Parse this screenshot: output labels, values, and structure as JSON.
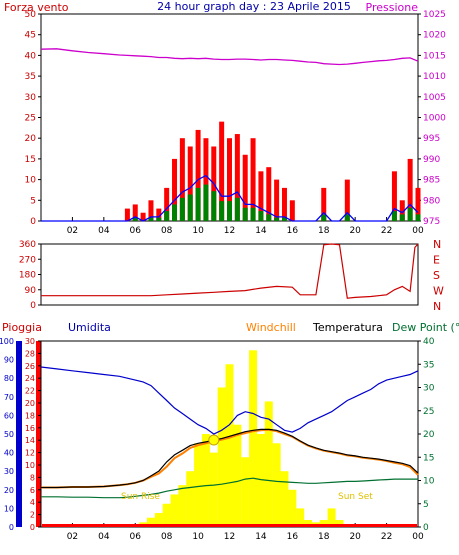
{
  "header": {
    "left_title": "Forza vento",
    "left_unit": "",
    "center_title": "24 hour graph day : 23 Aprile 2015",
    "right_title": "Pressione"
  },
  "panel3_headers": {
    "rain": "Pioggia",
    "humidity": "Umidita",
    "windchill": "Windchill",
    "temperature": "Temperatura",
    "dewpoint": "Dew Point (°C"
  },
  "annotations": {
    "sunrise": "Sun Rise",
    "sunset": "Sun Set"
  },
  "colors": {
    "wind_speed": "#ff0000",
    "wind_gust_avg": "#0000ff",
    "wind_fill": "#008000",
    "pressure": "#cc00cc",
    "direction": "#cc0000",
    "humidity": "#0000cc",
    "windchill": "#ff8000",
    "temperature": "#000000",
    "dewpoint": "#007030",
    "solar": "#ffff00",
    "rain": "#ff0000",
    "sun_text": "#e0c000"
  },
  "chart_data": [
    {
      "type": "line",
      "name": "wind-pressure",
      "x": [
        0,
        1,
        2,
        3,
        4,
        5,
        5.5,
        6,
        6.5,
        7,
        7.5,
        8,
        8.5,
        9,
        9.5,
        10,
        10.5,
        11,
        11.5,
        12,
        12.5,
        13,
        13.5,
        14,
        14.5,
        15,
        15.5,
        16,
        16.5,
        17,
        17.5,
        18,
        18.5,
        19,
        19.5,
        20,
        20.5,
        21,
        21.5,
        22,
        22.5,
        23,
        23.5,
        24
      ],
      "series": [
        {
          "name": "Forza vento",
          "axis": "left",
          "values": [
            0,
            0,
            0,
            0,
            0,
            0,
            3,
            4,
            2,
            5,
            3,
            8,
            15,
            20,
            18,
            22,
            20,
            18,
            24,
            20,
            21,
            16,
            20,
            12,
            13,
            10,
            8,
            5,
            0,
            0,
            0,
            8,
            0,
            0,
            10,
            0,
            0,
            0,
            0,
            0,
            12,
            5,
            15,
            8
          ]
        },
        {
          "axis": "left",
          "values": [
            0,
            0,
            0,
            0,
            0,
            0,
            0,
            1,
            0,
            1,
            1,
            3,
            5,
            7,
            8,
            10,
            11,
            9,
            6,
            6,
            7,
            4,
            4,
            3,
            2,
            1,
            1,
            0,
            0,
            0,
            0,
            2,
            0,
            0,
            2,
            0,
            0,
            0,
            0,
            0,
            3,
            2,
            4,
            2
          ]
        },
        {
          "name": "Pressione",
          "axis": "right",
          "values": [
            1016.5,
            1016.6,
            1016.1,
            1015.7,
            1015.4,
            1015.1,
            1015.0,
            1014.9,
            1014.8,
            1014.7,
            1014.5,
            1014.5,
            1014.3,
            1014.2,
            1014.3,
            1014.2,
            1014.3,
            1014.1,
            1014.0,
            1014.0,
            1014.1,
            1014.1,
            1014.0,
            1013.9,
            1014.0,
            1014.0,
            1013.9,
            1013.8,
            1013.6,
            1013.4,
            1013.3,
            1013.0,
            1012.9,
            1012.8,
            1012.9,
            1013.1,
            1013.3,
            1013.5,
            1013.7,
            1013.8,
            1014.0,
            1014.3,
            1014.4,
            1013.6
          ]
        }
      ],
      "ylim_left": [
        0,
        50
      ],
      "yticks_left": [
        0,
        5,
        10,
        15,
        20,
        25,
        30,
        35,
        40,
        45,
        50
      ],
      "ylim_right": [
        975,
        1025
      ],
      "yticks_right": [
        975,
        980,
        985,
        990,
        995,
        1000,
        1005,
        1010,
        1015,
        1020,
        1025
      ],
      "xticks": [
        "02",
        "04",
        "06",
        "08",
        "10",
        "12",
        "14",
        "16",
        "18",
        "20",
        "22",
        "00"
      ]
    },
    {
      "type": "line",
      "name": "wind-direction",
      "x": [
        0,
        1,
        2,
        3,
        4,
        5,
        6,
        7,
        8,
        9,
        10,
        11,
        12,
        13,
        14,
        15,
        16,
        16.5,
        17,
        17.5,
        18,
        18.5,
        19,
        19.5,
        20,
        21,
        22,
        22.5,
        23,
        23.5,
        23.8,
        24
      ],
      "series": [
        {
          "values": [
            55,
            55,
            55,
            55,
            55,
            55,
            55,
            55,
            60,
            65,
            70,
            75,
            80,
            85,
            100,
            110,
            105,
            60,
            60,
            60,
            355,
            360,
            355,
            40,
            45,
            50,
            60,
            90,
            110,
            80,
            340,
            360
          ]
        }
      ],
      "ylim": [
        0,
        360
      ],
      "yticks": [
        0,
        90,
        180,
        270,
        360
      ],
      "right_labels": [
        "N",
        "W",
        "S",
        "E",
        "N"
      ]
    },
    {
      "type": "line",
      "name": "temp-humidity-rain",
      "x": [
        0,
        1,
        2,
        3,
        4,
        5,
        5.5,
        6,
        6.5,
        7,
        7.5,
        8,
        8.5,
        9,
        9.5,
        10,
        10.5,
        11,
        11.5,
        12,
        12.5,
        13,
        13.5,
        14,
        14.5,
        15,
        15.5,
        16,
        16.5,
        17,
        17.5,
        18,
        18.5,
        19,
        19.5,
        20,
        20.5,
        21,
        21.5,
        22,
        22.5,
        23,
        23.5,
        24
      ],
      "series": [
        {
          "name": "Umidita",
          "axis": "humidity",
          "values": [
            86,
            85,
            84,
            83,
            82,
            81,
            80,
            79,
            78,
            76,
            72,
            68,
            64,
            61,
            58,
            55,
            53,
            50,
            52,
            55,
            60,
            62,
            61,
            59,
            58,
            55,
            52,
            51,
            53,
            56,
            58,
            60,
            62,
            65,
            68,
            70,
            72,
            74,
            77,
            79,
            80,
            81,
            82,
            84
          ]
        },
        {
          "name": "Temperatura",
          "axis": "temp",
          "values": [
            8.5,
            8.5,
            8.6,
            8.6,
            8.7,
            9,
            9.2,
            9.5,
            10,
            11,
            12,
            14,
            15.5,
            16.5,
            17.5,
            18,
            18.3,
            18.7,
            19,
            19.5,
            20,
            20.5,
            20.8,
            21,
            21,
            20.8,
            20.2,
            19.5,
            18.5,
            17.6,
            17,
            16.5,
            16.2,
            15.9,
            15.5,
            15.3,
            15,
            14.8,
            14.6,
            14.3,
            14,
            13.7,
            13.2,
            11.6
          ]
        },
        {
          "name": "Windchill",
          "axis": "temp",
          "values": [
            8.5,
            8.5,
            8.6,
            8.6,
            8.7,
            9,
            9.2,
            9.5,
            10,
            10.8,
            11.5,
            13,
            14.8,
            15.8,
            17,
            17.6,
            18,
            18.4,
            18.8,
            19.2,
            19.8,
            20.2,
            20.6,
            20.8,
            20.9,
            20.6,
            20,
            19.4,
            18.4,
            17.5,
            16.9,
            16.4,
            16.1,
            15.8,
            15.4,
            15.2,
            14.9,
            14.7,
            14.5,
            14.2,
            13.8,
            13.5,
            12.9,
            11.2
          ]
        },
        {
          "name": "Dew Point",
          "axis": "temp",
          "values": [
            6.5,
            6.5,
            6.4,
            6.4,
            6.3,
            6.3,
            6.4,
            6.6,
            6.8,
            7,
            7.3,
            7.7,
            8,
            8.3,
            8.5,
            8.7,
            8.9,
            9,
            9.2,
            9.5,
            9.8,
            10.3,
            10.5,
            10.2,
            10,
            9.8,
            9.7,
            9.6,
            9.5,
            9.4,
            9.4,
            9.5,
            9.6,
            9.7,
            9.8,
            9.8,
            9.9,
            10,
            10.1,
            10.2,
            10.3,
            10.3,
            10.3,
            10.3
          ]
        },
        {
          "name": "Solar",
          "axis": "temp",
          "values": [
            0,
            0,
            0,
            0,
            0,
            0,
            0,
            0.5,
            1,
            2,
            3,
            5,
            7,
            9,
            12,
            18,
            20,
            16,
            30,
            35,
            22,
            15,
            38,
            20,
            27,
            18,
            12,
            8,
            4,
            1.5,
            1,
            1.5,
            4,
            1.5,
            0.5,
            0.2,
            0,
            0,
            0,
            0,
            0,
            0,
            0,
            0
          ]
        },
        {
          "name": "Pioggia",
          "axis": "rain",
          "values": [
            0,
            0,
            0,
            0,
            0,
            0,
            0,
            0,
            0,
            0,
            0,
            0,
            0,
            0,
            0,
            0,
            0,
            0,
            0,
            0,
            0,
            0,
            0,
            0,
            0,
            0,
            0,
            0,
            0,
            0,
            0,
            0,
            0,
            0,
            0,
            0,
            0,
            0,
            0,
            0,
            0,
            0,
            0,
            0
          ]
        }
      ],
      "ylim_humidity": [
        0,
        100
      ],
      "yticks_humidity": [
        0,
        10,
        20,
        30,
        40,
        50,
        60,
        70,
        80,
        90,
        100
      ],
      "ylim_rain": [
        0,
        30
      ],
      "yticks_rain": [
        0,
        2,
        4,
        6,
        8,
        10,
        12,
        14,
        16,
        18,
        20,
        22,
        24,
        26,
        28,
        30
      ],
      "ylim_temp": [
        0,
        40
      ],
      "yticks_temp": [
        0,
        5,
        10,
        15,
        20,
        25,
        30,
        35,
        40
      ],
      "xticks": [
        "02",
        "04",
        "06",
        "08",
        "10",
        "12",
        "14",
        "16",
        "18",
        "20",
        "22",
        "00"
      ]
    }
  ]
}
